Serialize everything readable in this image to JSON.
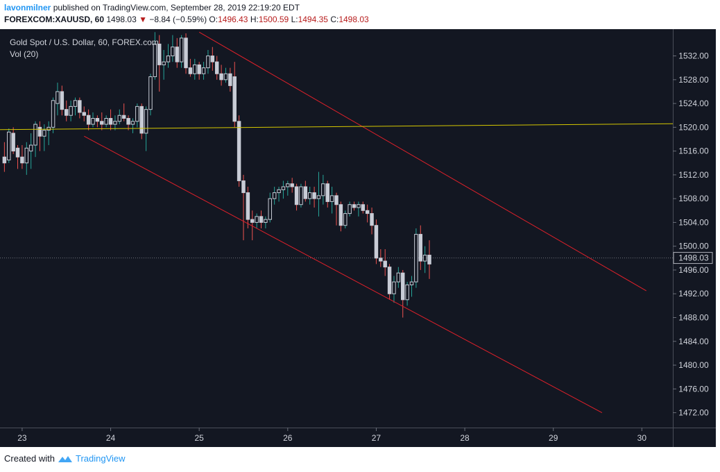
{
  "header": {
    "author": "lavonmilner",
    "published": "published on TradingView.com, September 28, 2019 22:19:20 EDT",
    "symbol": "FOREXCOM:XAUUSD, 60",
    "price": "1498.03",
    "change": "−8.84 (−0.59%)",
    "o_label": "O:",
    "o_value": "1496.43",
    "h_label": "H:",
    "h_value": "1500.59",
    "l_label": "L:",
    "l_value": "1494.35",
    "c_label": "C:",
    "c_value": "1498.03"
  },
  "chart": {
    "title": "Gold Spot / U.S. Dollar, 60, FOREX.com",
    "vol_label": "Vol (20)",
    "last_price_label": "1498.03"
  },
  "footer": {
    "created_with": "Created with",
    "brand": "TradingView"
  },
  "colors": {
    "background": "#131722",
    "candle_body": "#c8ccd6",
    "wick_up": "#26a69a",
    "wick_down": "#ef5350",
    "channel": "#e0202a",
    "horizontal": "#d6c800",
    "axis_text": "#d1d4dc"
  },
  "chart_data": {
    "type": "candlestick",
    "ylim": [
      1469.5,
      1536.5
    ],
    "xlim": [
      22.75,
      30.35
    ],
    "y_ticks": [
      1472,
      1476,
      1480,
      1484,
      1488,
      1492,
      1496,
      1500,
      1504,
      1508,
      1512,
      1516,
      1520,
      1524,
      1528,
      1532
    ],
    "y_tick_labels": [
      "1472.00",
      "1476.00",
      "1480.00",
      "1484.00",
      "1488.00",
      "1492.00",
      "1496.00",
      "1500.00",
      "1504.00",
      "1508.00",
      "1512.00",
      "1516.00",
      "1520.00",
      "1524.00",
      "1528.00",
      "1532.00"
    ],
    "x_ticks": [
      23,
      24,
      25,
      26,
      27,
      28,
      29,
      30
    ],
    "x_tick_labels": [
      "23",
      "24",
      "25",
      "26",
      "27",
      "28",
      "29",
      "30"
    ],
    "last_price": 1498.03,
    "candles": [
      [
        22.8,
        1515.0,
        1517.5,
        1512.5,
        1514.0
      ],
      [
        22.85,
        1514.5,
        1519.8,
        1514.0,
        1519.2
      ],
      [
        22.9,
        1519.0,
        1520.0,
        1515.5,
        1516.0
      ],
      [
        22.95,
        1516.5,
        1517.0,
        1513.0,
        1515.0
      ],
      [
        23.0,
        1515.0,
        1517.0,
        1513.0,
        1514.0
      ],
      [
        23.05,
        1514.0,
        1517.5,
        1512.0,
        1516.5
      ],
      [
        23.1,
        1516.0,
        1519.0,
        1513.0,
        1517.0
      ],
      [
        23.15,
        1517.0,
        1521.0,
        1515.0,
        1520.5
      ],
      [
        23.2,
        1520.0,
        1521.0,
        1516.0,
        1518.5
      ],
      [
        23.25,
        1518.5,
        1520.5,
        1516.0,
        1519.5
      ],
      [
        23.3,
        1519.5,
        1521.0,
        1517.0,
        1520.0
      ],
      [
        23.35,
        1520.0,
        1525.0,
        1519.0,
        1524.5
      ],
      [
        23.4,
        1524.0,
        1527.5,
        1522.0,
        1526.0
      ],
      [
        23.45,
        1526.0,
        1527.0,
        1522.0,
        1523.0
      ],
      [
        23.5,
        1523.0,
        1524.5,
        1521.0,
        1522.0
      ],
      [
        23.55,
        1522.0,
        1524.5,
        1521.0,
        1523.5
      ],
      [
        23.6,
        1523.5,
        1525.0,
        1522.0,
        1524.5
      ],
      [
        23.65,
        1524.5,
        1525.0,
        1521.5,
        1522.5
      ],
      [
        23.7,
        1522.5,
        1523.5,
        1521.0,
        1522.0
      ],
      [
        23.75,
        1522.0,
        1523.0,
        1519.5,
        1520.5
      ],
      [
        23.8,
        1520.5,
        1522.5,
        1520.0,
        1521.5
      ],
      [
        23.85,
        1521.5,
        1522.0,
        1520.0,
        1521.0
      ],
      [
        23.9,
        1521.0,
        1522.5,
        1519.5,
        1520.5
      ],
      [
        23.95,
        1520.5,
        1522.0,
        1520.0,
        1521.5
      ],
      [
        24.0,
        1521.5,
        1523.0,
        1519.5,
        1520.5
      ],
      [
        24.05,
        1520.5,
        1522.0,
        1519.5,
        1521.0
      ],
      [
        24.1,
        1521.0,
        1523.0,
        1520.5,
        1522.0
      ],
      [
        24.15,
        1522.0,
        1524.0,
        1521.0,
        1521.5
      ],
      [
        24.2,
        1521.5,
        1522.0,
        1519.5,
        1520.5
      ],
      [
        24.25,
        1520.5,
        1521.5,
        1519.0,
        1521.0
      ],
      [
        24.3,
        1521.0,
        1524.0,
        1520.0,
        1523.5
      ],
      [
        24.35,
        1523.5,
        1524.0,
        1518.0,
        1519.0
      ],
      [
        24.4,
        1519.0,
        1523.5,
        1516.0,
        1523.0
      ],
      [
        24.45,
        1523.0,
        1529.0,
        1522.0,
        1528.5
      ],
      [
        24.5,
        1528.5,
        1536.0,
        1528.0,
        1534.0
      ],
      [
        24.55,
        1534.0,
        1535.5,
        1526.0,
        1530.5
      ],
      [
        24.6,
        1530.5,
        1533.0,
        1528.0,
        1531.0
      ],
      [
        24.65,
        1531.0,
        1534.0,
        1530.0,
        1532.0
      ],
      [
        24.7,
        1532.0,
        1535.5,
        1531.0,
        1533.5
      ],
      [
        24.75,
        1533.5,
        1535.0,
        1530.0,
        1531.0
      ],
      [
        24.8,
        1531.0,
        1535.5,
        1530.0,
        1535.0
      ],
      [
        24.85,
        1535.0,
        1535.8,
        1529.0,
        1530.0
      ],
      [
        24.9,
        1530.0,
        1531.5,
        1528.5,
        1529.0
      ],
      [
        24.95,
        1529.0,
        1531.5,
        1528.0,
        1530.5
      ],
      [
        25.0,
        1530.5,
        1531.0,
        1528.0,
        1529.0
      ],
      [
        25.05,
        1529.0,
        1531.0,
        1528.0,
        1530.0
      ],
      [
        25.1,
        1530.0,
        1533.0,
        1529.0,
        1532.0
      ],
      [
        25.15,
        1532.0,
        1533.5,
        1529.5,
        1531.0
      ],
      [
        25.2,
        1531.0,
        1532.0,
        1528.0,
        1529.0
      ],
      [
        25.25,
        1529.0,
        1530.5,
        1527.0,
        1528.0
      ],
      [
        25.3,
        1528.0,
        1530.0,
        1527.5,
        1529.0
      ],
      [
        25.35,
        1529.0,
        1530.0,
        1526.0,
        1527.0
      ],
      [
        25.4,
        1528.5,
        1531.0,
        1520.0,
        1521.0
      ],
      [
        25.45,
        1521.0,
        1522.0,
        1510.0,
        1511.0
      ],
      [
        25.5,
        1511.0,
        1512.0,
        1501.0,
        1509.0
      ],
      [
        25.55,
        1509.0,
        1510.0,
        1503.0,
        1504.5
      ],
      [
        25.6,
        1504.5,
        1506.0,
        1501.0,
        1504.0
      ],
      [
        25.65,
        1504.0,
        1505.5,
        1503.0,
        1505.0
      ],
      [
        25.7,
        1505.0,
        1506.0,
        1503.0,
        1504.0
      ],
      [
        25.75,
        1504.0,
        1505.0,
        1503.0,
        1504.5
      ],
      [
        25.8,
        1504.5,
        1509.0,
        1504.0,
        1508.0
      ],
      [
        25.85,
        1508.0,
        1510.0,
        1507.0,
        1509.0
      ],
      [
        25.9,
        1509.0,
        1510.0,
        1507.5,
        1509.5
      ],
      [
        25.95,
        1509.5,
        1511.0,
        1508.0,
        1510.0
      ],
      [
        26.0,
        1510.0,
        1511.0,
        1508.5,
        1510.5
      ],
      [
        26.05,
        1510.5,
        1511.5,
        1509.0,
        1510.0
      ],
      [
        26.1,
        1510.0,
        1510.5,
        1506.0,
        1507.0
      ],
      [
        26.15,
        1507.0,
        1510.5,
        1506.5,
        1510.0
      ],
      [
        26.2,
        1510.0,
        1511.0,
        1507.5,
        1508.0
      ],
      [
        26.25,
        1508.0,
        1510.0,
        1507.0,
        1509.0
      ],
      [
        26.3,
        1509.0,
        1510.0,
        1506.5,
        1508.0
      ],
      [
        26.35,
        1508.0,
        1512.5,
        1505.0,
        1508.5
      ],
      [
        26.4,
        1508.5,
        1512.0,
        1507.0,
        1510.5
      ],
      [
        26.45,
        1510.5,
        1511.0,
        1506.5,
        1507.5
      ],
      [
        26.5,
        1507.5,
        1510.0,
        1505.5,
        1508.5
      ],
      [
        26.55,
        1508.5,
        1509.0,
        1503.5,
        1507.0
      ],
      [
        26.6,
        1507.0,
        1507.5,
        1502.5,
        1503.5
      ],
      [
        26.65,
        1503.5,
        1506.0,
        1503.0,
        1505.5
      ],
      [
        26.7,
        1505.5,
        1507.5,
        1505.0,
        1507.0
      ],
      [
        26.75,
        1507.0,
        1507.5,
        1506.0,
        1506.5
      ],
      [
        26.8,
        1506.5,
        1507.5,
        1505.0,
        1507.0
      ],
      [
        26.85,
        1507.0,
        1507.5,
        1505.5,
        1506.0
      ],
      [
        26.9,
        1506.0,
        1507.0,
        1504.0,
        1505.5
      ],
      [
        26.95,
        1505.5,
        1506.5,
        1502.0,
        1503.5
      ],
      [
        27.0,
        1503.5,
        1504.5,
        1497.0,
        1498.0
      ],
      [
        27.05,
        1498.0,
        1499.5,
        1496.5,
        1497.5
      ],
      [
        27.1,
        1497.5,
        1499.5,
        1495.0,
        1496.5
      ],
      [
        27.15,
        1496.5,
        1497.0,
        1491.0,
        1492.0
      ],
      [
        27.2,
        1492.0,
        1495.0,
        1490.5,
        1494.0
      ],
      [
        27.25,
        1494.0,
        1496.5,
        1493.0,
        1495.5
      ],
      [
        27.3,
        1495.5,
        1496.0,
        1488.0,
        1491.0
      ],
      [
        27.35,
        1491.0,
        1494.0,
        1490.0,
        1493.5
      ],
      [
        27.4,
        1493.5,
        1495.0,
        1491.5,
        1494.0
      ],
      [
        27.45,
        1494.0,
        1503.0,
        1493.0,
        1502.0
      ],
      [
        27.5,
        1502.0,
        1503.5,
        1496.0,
        1497.5
      ],
      [
        27.55,
        1497.5,
        1500.0,
        1495.5,
        1498.5
      ],
      [
        27.6,
        1498.5,
        1501.0,
        1494.5,
        1497.0
      ]
    ],
    "channel_upper": [
      [
        25.0,
        1536.0
      ],
      [
        30.05,
        1492.5
      ]
    ],
    "channel_lower": [
      [
        23.7,
        1518.5
      ],
      [
        29.55,
        1472.0
      ]
    ],
    "horizontal_line": [
      [
        22.75,
        1519.6
      ],
      [
        30.35,
        1520.6
      ]
    ]
  }
}
